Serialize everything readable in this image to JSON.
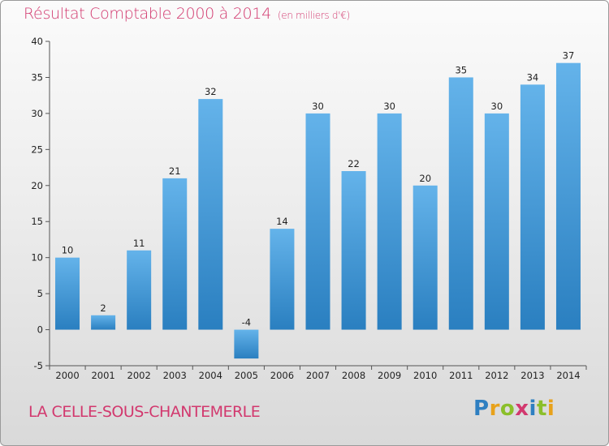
{
  "title": "Résultat Comptable 2000 à 2014",
  "unit_note": "(en milliers d'€)",
  "commune": "LA CELLE-SOUS-CHANTEMERLE",
  "logo": {
    "text": "Proxiti",
    "colors": [
      "#2e7fc1",
      "#e8a21b",
      "#8bbf2a",
      "#d2386e",
      "#2e7fc1",
      "#8bbf2a",
      "#e8a21b"
    ]
  },
  "colors": {
    "bar_light": "#64b3ea",
    "bar_dark": "#2a7fc0",
    "title": "#d2386e"
  },
  "chart_data": {
    "type": "bar",
    "categories": [
      "2000",
      "2001",
      "2002",
      "2003",
      "2004",
      "2005",
      "2006",
      "2007",
      "2008",
      "2009",
      "2010",
      "2011",
      "2012",
      "2013",
      "2014"
    ],
    "values": [
      10,
      2,
      11,
      21,
      32,
      -4,
      14,
      30,
      22,
      30,
      20,
      35,
      30,
      34,
      37
    ],
    "data_labels": [
      "10",
      "2",
      "11",
      "21",
      "32",
      "-4",
      "14",
      "30",
      "22",
      "30",
      "20",
      "35",
      "30",
      "34",
      "37"
    ],
    "yticks": [
      -5,
      0,
      5,
      10,
      15,
      20,
      25,
      30,
      35,
      40
    ],
    "ylim": [
      -5,
      40
    ],
    "grid": false
  }
}
